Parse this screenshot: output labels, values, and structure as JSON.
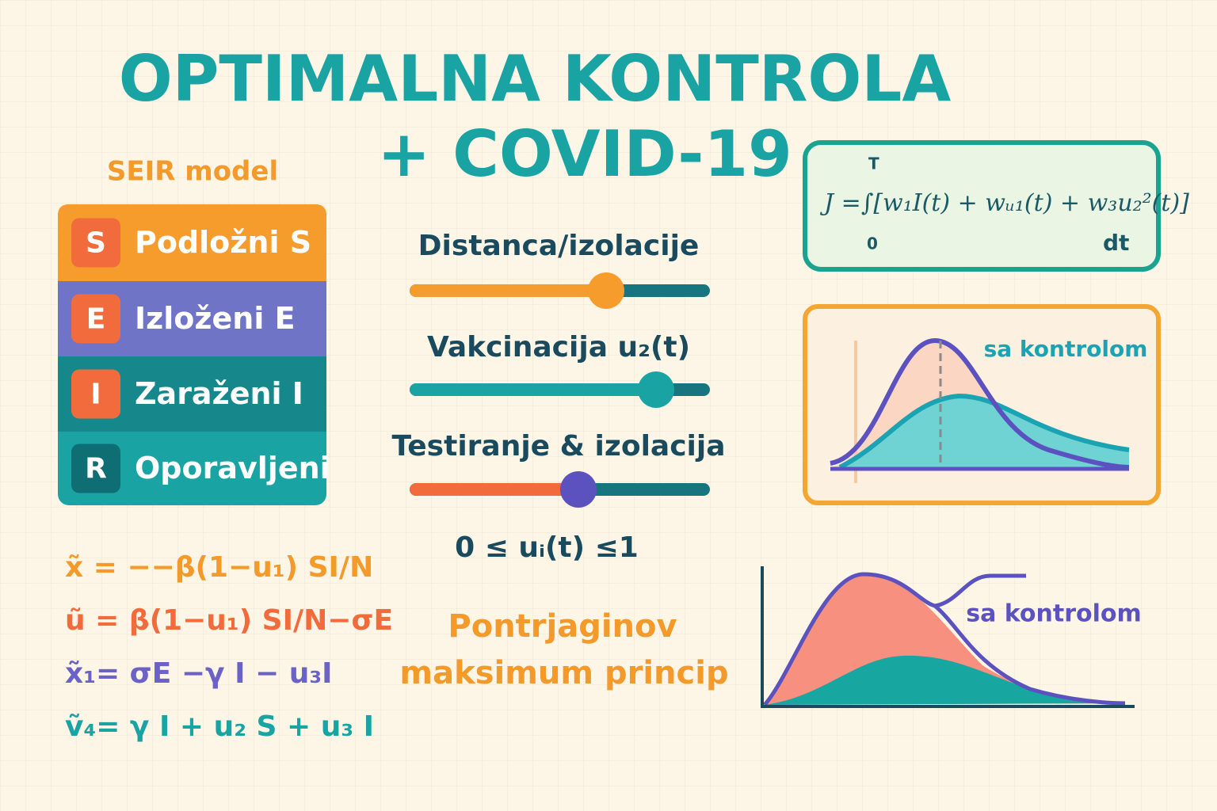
{
  "title": {
    "line1": "OPTIMALNA KONTROLA",
    "line2": "+ COVID-19"
  },
  "seir": {
    "heading": "SEIR model",
    "items": [
      {
        "letter": "S",
        "label": "Podložni S"
      },
      {
        "letter": "E",
        "label": "Izloženi E"
      },
      {
        "letter": "I",
        "label": "Zaraženi I"
      },
      {
        "letter": "R",
        "label": "Oporavljeni"
      }
    ]
  },
  "equations": [
    "x̃ = −−β(1−u₁) SI/N",
    "ũ = β(1−u₁) SI/N−σE",
    "x̃₁= σE −γ I − u₃I",
    "ṽ₄= γ I + u₂ S + u₃ I"
  ],
  "controls": [
    "Distanca/izolacije",
    "Vakcinacija u₂(t)",
    "Testiranje & izolacija"
  ],
  "constraint": "0 ≤ uᵢ(t) ≤1",
  "principle": [
    "Pontrjaginov",
    "maksimum princip"
  ],
  "objective": {
    "formula": "J =∫[w₁I(t) + wᵤ₁(t) + w₃u₂²(t)]",
    "upper": "T",
    "lower": "0",
    "differential": "dt"
  },
  "plots": [
    {
      "label": "sa kontrolom"
    },
    {
      "label": "sa kontrolom"
    }
  ]
}
